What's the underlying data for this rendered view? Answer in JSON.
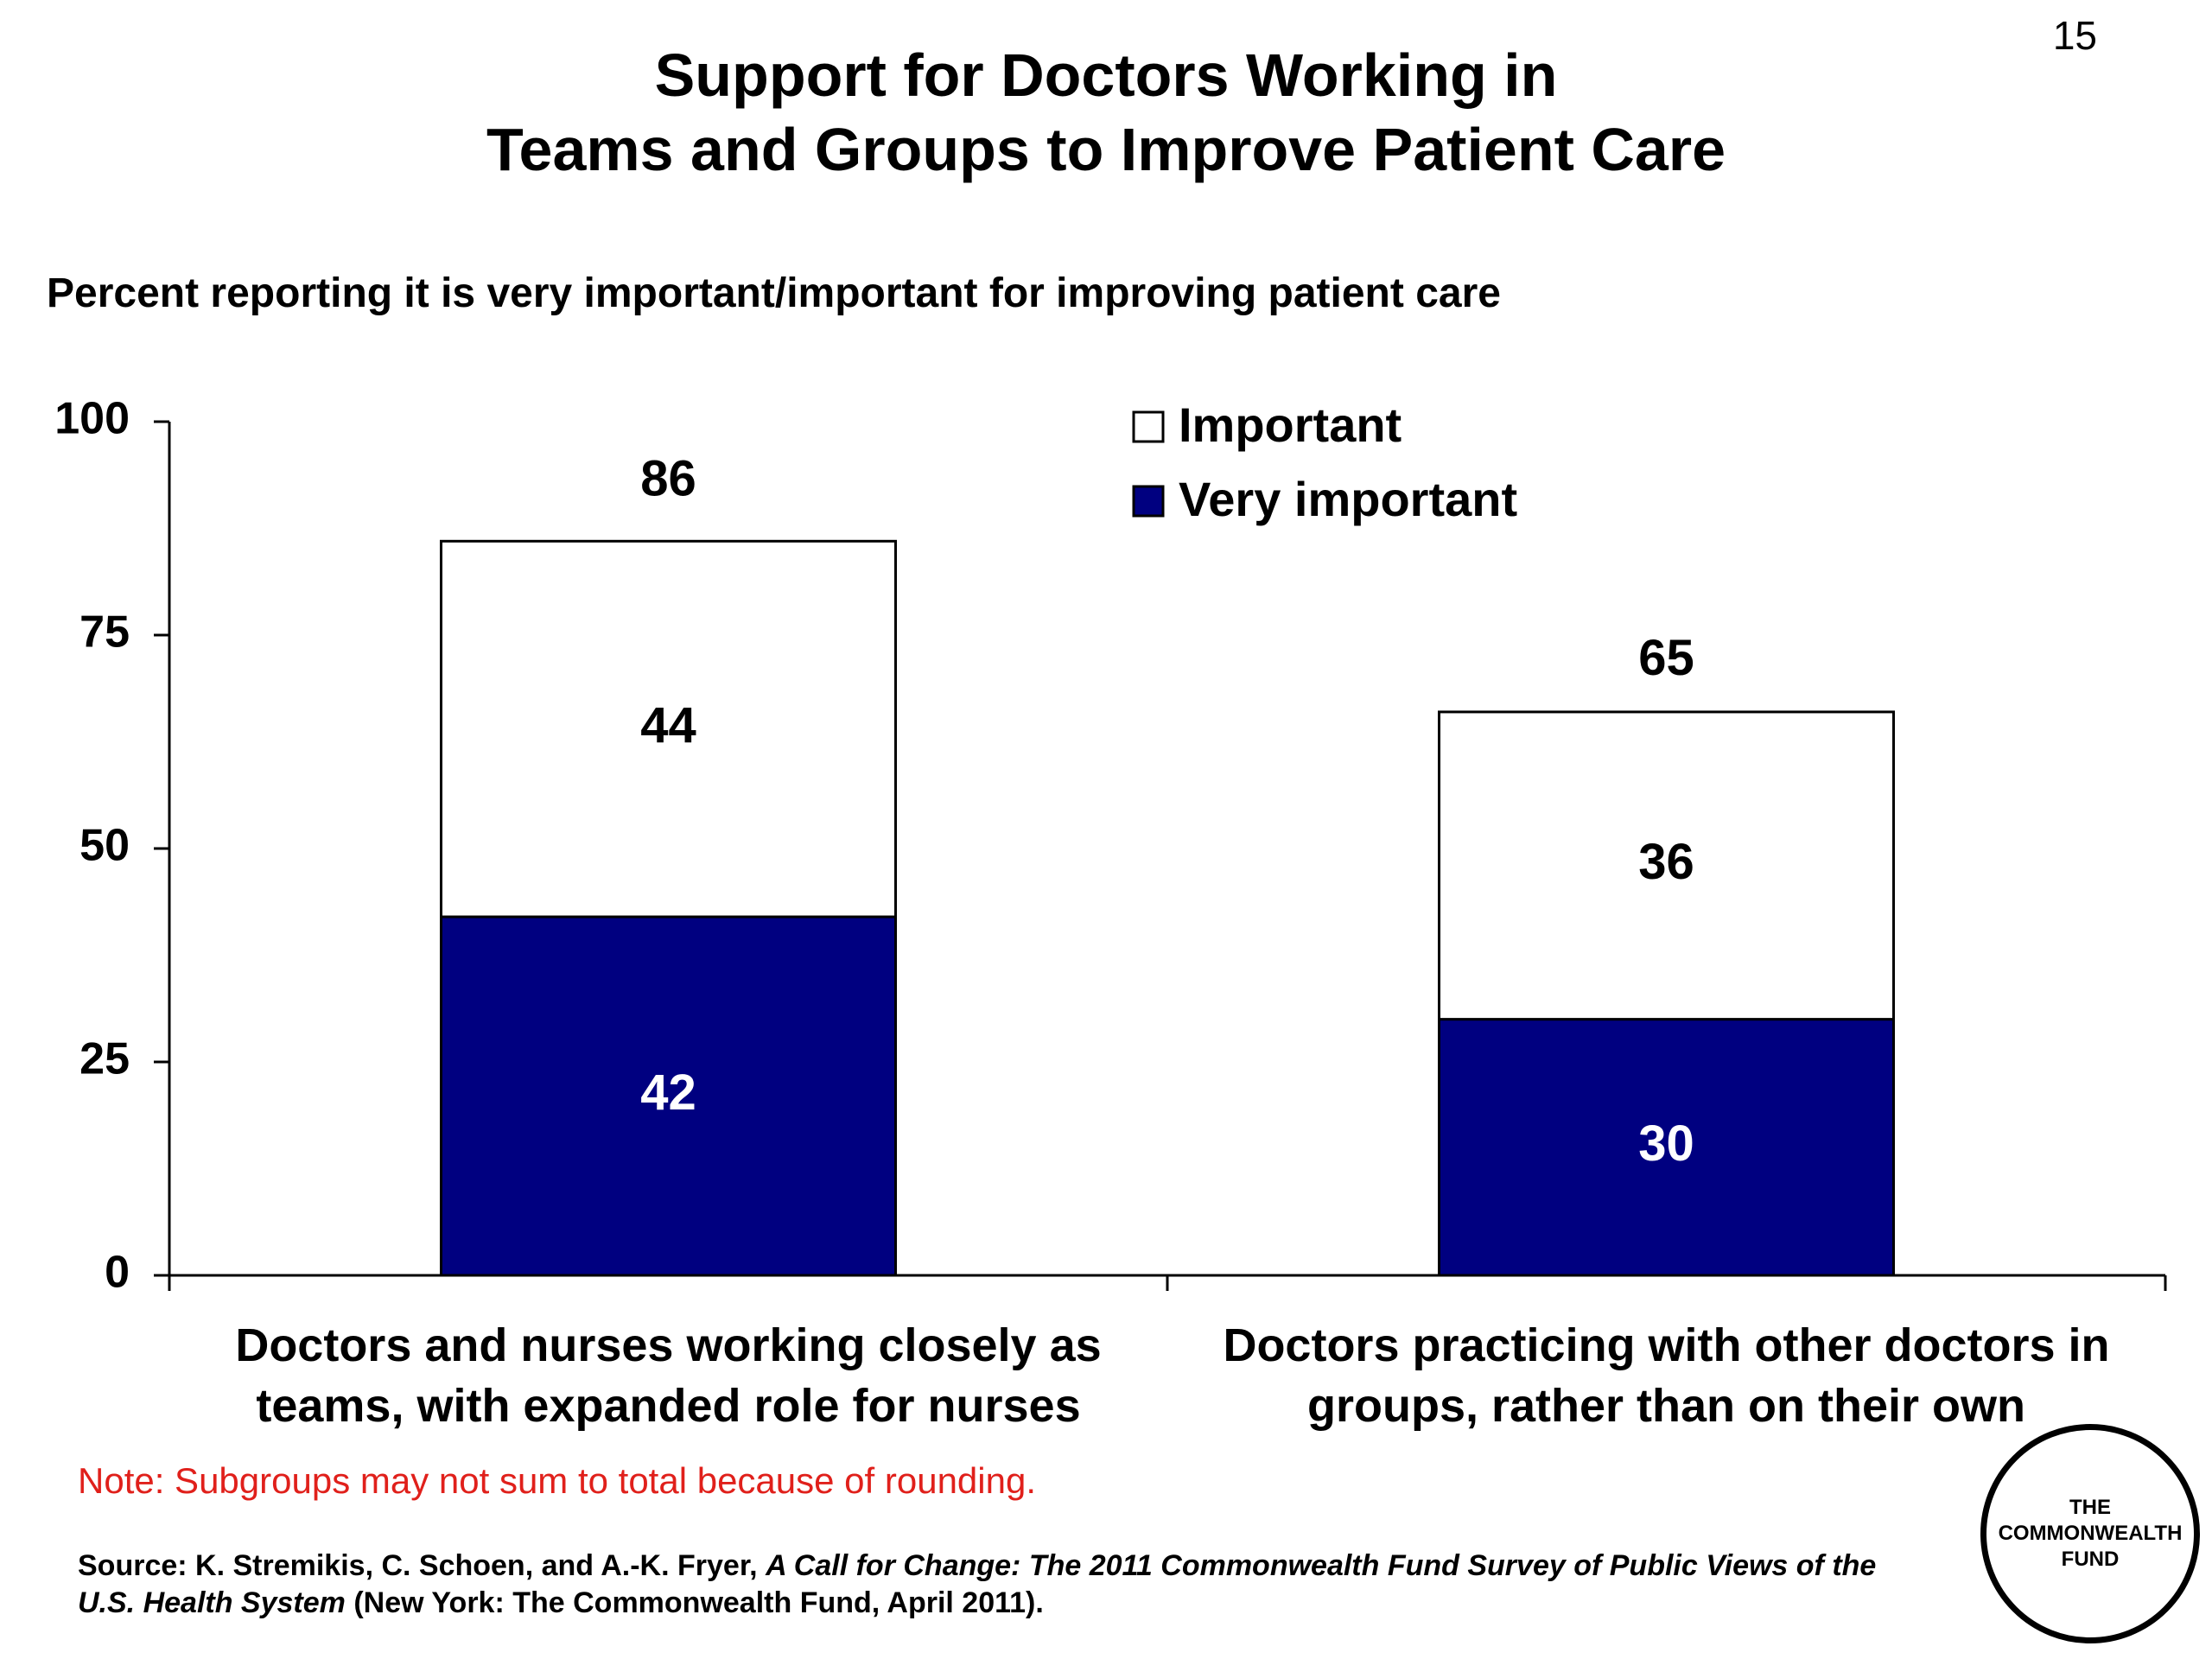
{
  "slide_number": "15",
  "chart_data": {
    "type": "bar",
    "stacked": true,
    "title": [
      "Support for Doctors Working in",
      "Teams and Groups to Improve Patient Care"
    ],
    "subtitle": "Percent reporting it is very important/important for improving patient care",
    "categories": [
      [
        "Doctors and nurses working closely as",
        "teams, with expanded role for nurses"
      ],
      [
        "Doctors practicing with other doctors in",
        "groups, rather than on their own"
      ]
    ],
    "series": [
      {
        "name": "Very important",
        "color": "#000080",
        "label_color": "#ffffff",
        "values": [
          42,
          30
        ]
      },
      {
        "name": "Important",
        "color": "#ffffff",
        "label_color": "#000000",
        "values": [
          44,
          36
        ]
      }
    ],
    "totals": [
      86,
      65
    ],
    "legend_order": [
      "Important",
      "Very important"
    ],
    "legend_placement": "top-center",
    "ylim": [
      0,
      100
    ],
    "yticks": [
      0,
      25,
      50,
      75,
      100
    ],
    "grid": false
  },
  "note": "Note: Subgroups may not sum to total because of rounding.",
  "source": {
    "prefix": "Source: K. Stremikis, C. Schoen, and A.-K. Fryer, ",
    "italic": "A Call for Change: The 2011 Commonwealth Fund Survey of Public Views of the U.S. Health System",
    "suffix": " (New York: The Commonwealth Fund, April 2011)."
  },
  "logo": {
    "lines": [
      "THE",
      "COMMONWEALTH",
      "FUND"
    ]
  }
}
